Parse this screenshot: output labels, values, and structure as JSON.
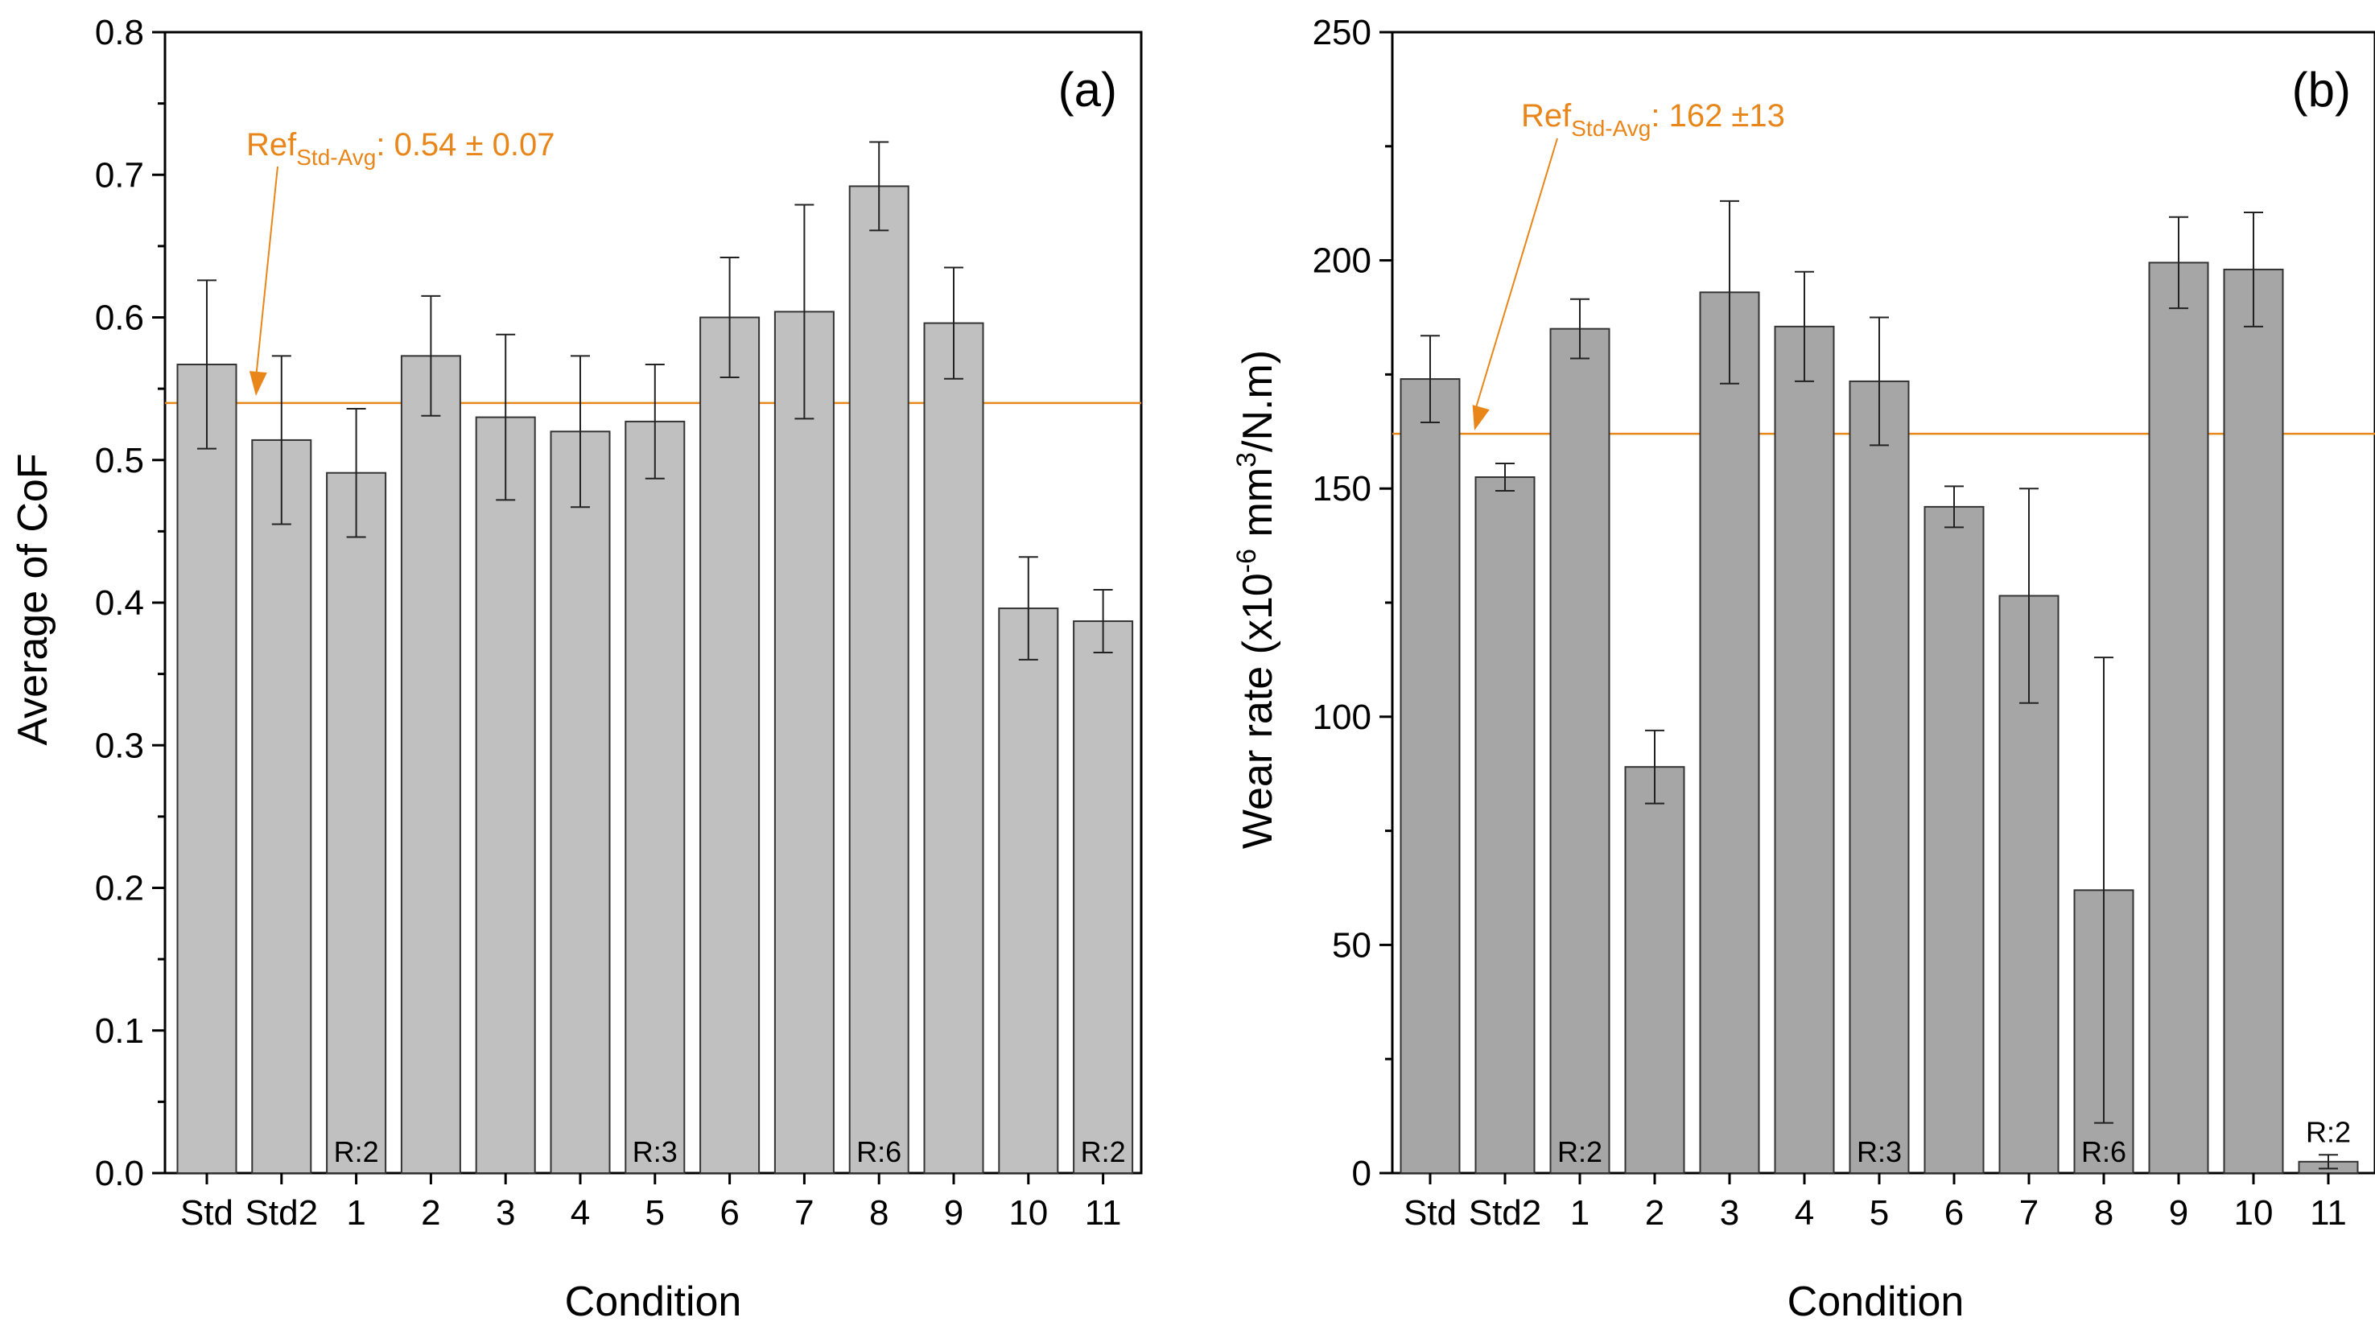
{
  "chart_data": [
    {
      "type": "bar",
      "panel_label": "(a)",
      "xlabel": "Condition",
      "ylabel": "Average of CoF",
      "ylim": [
        0,
        0.8
      ],
      "yticks": [
        0.0,
        0.1,
        0.2,
        0.3,
        0.4,
        0.5,
        0.6,
        0.7,
        0.8
      ],
      "ytick_labels": [
        "0.0",
        "0.1",
        "0.2",
        "0.3",
        "0.4",
        "0.5",
        "0.6",
        "0.7",
        "0.8"
      ],
      "categories": [
        "Std",
        "Std2",
        "1",
        "2",
        "3",
        "4",
        "5",
        "6",
        "7",
        "8",
        "9",
        "10",
        "11"
      ],
      "values": [
        0.567,
        0.514,
        0.491,
        0.573,
        0.53,
        0.52,
        0.527,
        0.6,
        0.604,
        0.692,
        0.596,
        0.396,
        0.387
      ],
      "errors": [
        0.059,
        0.059,
        0.045,
        0.042,
        0.058,
        0.053,
        0.04,
        0.042,
        0.075,
        0.031,
        0.039,
        0.036,
        0.022
      ],
      "bar_annotations": [
        {
          "category": "1",
          "text": "R:2"
        },
        {
          "category": "5",
          "text": "R:3"
        },
        {
          "category": "8",
          "text": "R:6"
        },
        {
          "category": "11",
          "text": "R:2"
        }
      ],
      "reference": {
        "value": 0.54,
        "label_main": "Ref",
        "label_sub": "Std-Avg",
        "label_rest": ": 0.54 ± 0.07",
        "color": "#e8861a"
      },
      "bar_color": "#c0c0c0"
    },
    {
      "type": "bar",
      "panel_label": "(b)",
      "xlabel": "Condition",
      "ylabel_parts": {
        "pre": "Wear rate (x10",
        "sup1": "-6",
        "mid": " mm",
        "sup2": "3",
        "post": "/N.m)"
      },
      "ylim": [
        0,
        250
      ],
      "yticks": [
        0,
        50,
        100,
        150,
        200,
        250
      ],
      "ytick_labels": [
        "0",
        "50",
        "100",
        "150",
        "200",
        "250"
      ],
      "categories": [
        "Std",
        "Std2",
        "1",
        "2",
        "3",
        "4",
        "5",
        "6",
        "7",
        "8",
        "9",
        "10",
        "11"
      ],
      "values": [
        174,
        152.5,
        185,
        89,
        193,
        185.5,
        173.5,
        146,
        126.5,
        62,
        199.5,
        198,
        2.5
      ],
      "errors": [
        9.5,
        3,
        6.5,
        8,
        20,
        12,
        14,
        4.5,
        23.5,
        51,
        10,
        12.5,
        1.5
      ],
      "bar_annotations": [
        {
          "category": "1",
          "text": "R:2"
        },
        {
          "category": "5",
          "text": "R:3"
        },
        {
          "category": "8",
          "text": "R:6"
        },
        {
          "category": "11",
          "text": "R:2"
        }
      ],
      "reference": {
        "value": 162,
        "label_main": "Ref",
        "label_sub": "Std-Avg",
        "label_rest": ": 162 ±13",
        "color": "#e8861a"
      },
      "bar_color": "#a6a6a6"
    }
  ]
}
